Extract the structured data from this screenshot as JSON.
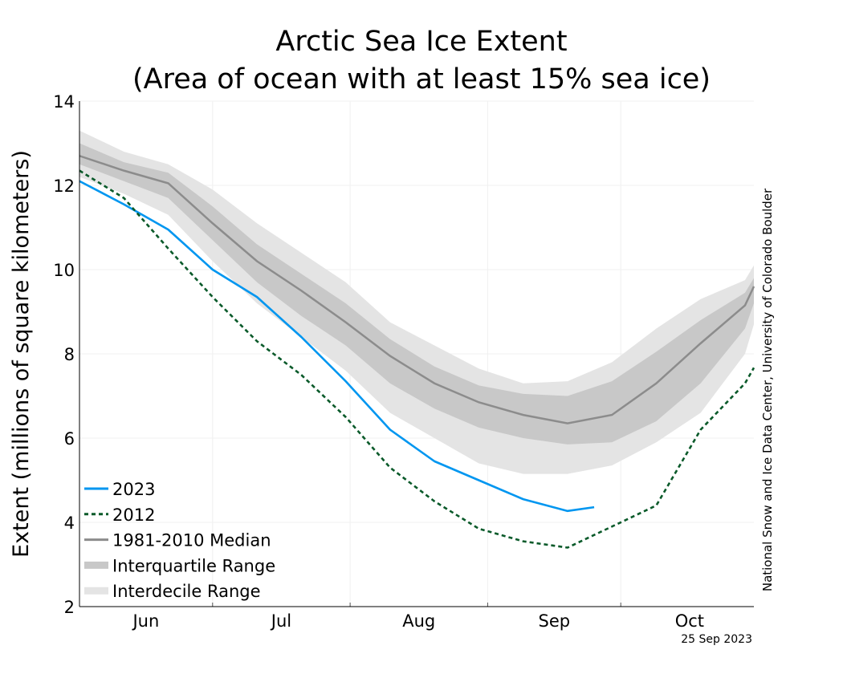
{
  "chart_data": {
    "type": "line",
    "title": [
      "Arctic Sea Ice Extent",
      "(Area of ocean with at least 15% sea ice)"
    ],
    "xlabel": "",
    "ylabel": "Extent (millions of square kilometers)",
    "ylim": [
      2,
      14
    ],
    "yticks": [
      2,
      4,
      6,
      8,
      10,
      12,
      14
    ],
    "x_unit": "days since June 1",
    "xlim": [
      0,
      152
    ],
    "month_labels": [
      {
        "label": "Jun",
        "day": 15
      },
      {
        "label": "Jul",
        "day": 45.5
      },
      {
        "label": "Aug",
        "day": 76.5
      },
      {
        "label": "Sep",
        "day": 107
      },
      {
        "label": "Oct",
        "day": 137.5
      }
    ],
    "month_boundaries": [
      30,
      61,
      92,
      122
    ],
    "grid": true,
    "legend_position": "bottom-left",
    "legend": [
      "2023",
      "2012",
      "1981-2010 Median",
      "Interquartile Range",
      "Interdecile Range"
    ],
    "days": [
      0,
      10,
      20,
      30,
      40,
      50,
      60,
      70,
      80,
      90,
      100,
      110,
      120,
      130,
      140,
      150,
      152
    ],
    "median": [
      12.7,
      12.35,
      12.05,
      11.1,
      10.2,
      9.5,
      8.75,
      7.95,
      7.3,
      6.85,
      6.55,
      6.35,
      6.55,
      7.3,
      8.25,
      9.15,
      9.6
    ],
    "iqr_low": [
      12.5,
      12.1,
      11.7,
      10.7,
      9.7,
      8.9,
      8.2,
      7.3,
      6.7,
      6.25,
      6.0,
      5.85,
      5.9,
      6.4,
      7.3,
      8.6,
      9.2
    ],
    "iqr_high": [
      13.0,
      12.55,
      12.3,
      11.5,
      10.6,
      9.9,
      9.2,
      8.35,
      7.7,
      7.25,
      7.05,
      7.0,
      7.35,
      8.05,
      8.8,
      9.45,
      9.8
    ],
    "idr_low": [
      12.2,
      11.8,
      11.3,
      10.2,
      9.2,
      8.4,
      7.6,
      6.6,
      6.0,
      5.4,
      5.15,
      5.15,
      5.35,
      5.9,
      6.6,
      8.0,
      8.7
    ],
    "idr_high": [
      13.3,
      12.8,
      12.5,
      11.9,
      11.1,
      10.4,
      9.7,
      8.75,
      8.2,
      7.65,
      7.3,
      7.35,
      7.8,
      8.6,
      9.3,
      9.75,
      10.1
    ],
    "series": [
      {
        "name": "2023",
        "color": "#0096f0",
        "style": "solid",
        "days": [
          0,
          10,
          20,
          30,
          40,
          50,
          60,
          70,
          80,
          90,
          100,
          110,
          116
        ],
        "values": [
          12.1,
          11.55,
          10.95,
          10.0,
          9.35,
          8.4,
          7.35,
          6.2,
          5.45,
          5.0,
          4.55,
          4.27,
          4.36
        ]
      },
      {
        "name": "2012",
        "color": "#0a5a2a",
        "style": "dashed",
        "days": [
          0,
          10,
          20,
          30,
          40,
          50,
          60,
          70,
          80,
          90,
          100,
          110,
          120,
          130,
          140,
          150,
          152
        ],
        "values": [
          12.35,
          11.7,
          10.5,
          9.35,
          8.3,
          7.5,
          6.5,
          5.3,
          4.5,
          3.85,
          3.55,
          3.4,
          3.9,
          4.4,
          6.2,
          7.3,
          7.67
        ]
      }
    ],
    "colors": {
      "median": "#8c8c8c",
      "iqr": "#c8c8c8",
      "idr": "#e4e4e4"
    },
    "credit": "National Snow and Ice Data Center, University of Colorado Boulder",
    "date": "25 Sep 2023"
  }
}
